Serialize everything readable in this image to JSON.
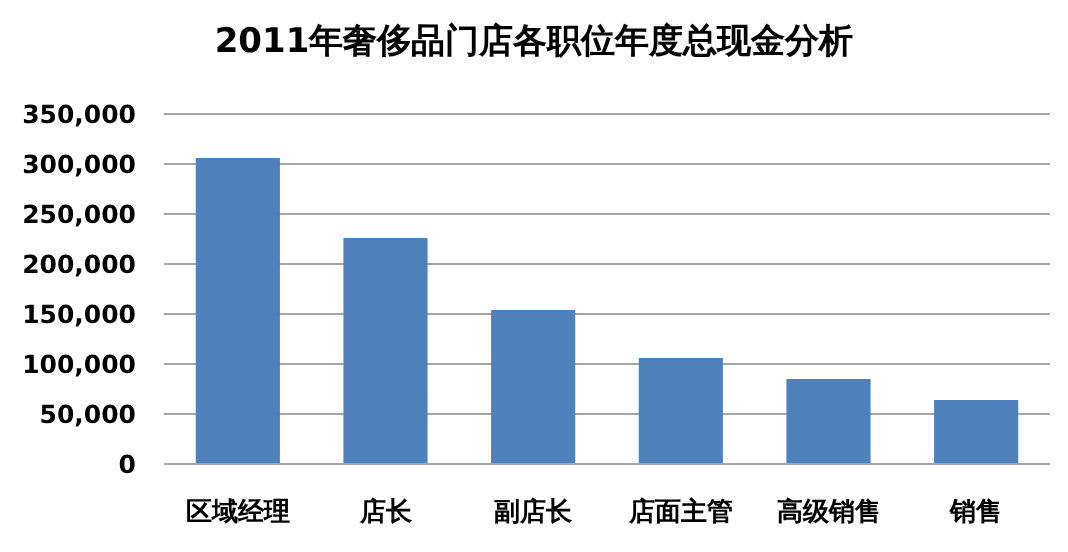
{
  "chart_data": {
    "type": "bar",
    "title": "2011年奢侈品门店各职位年度总现金分析",
    "categories": [
      "区域经理",
      "店长",
      "副店长",
      "店面主管",
      "高级销售",
      "销售"
    ],
    "values": [
      306000,
      226000,
      154000,
      106000,
      85000,
      64000
    ],
    "color": "#4f81bd",
    "ylim": [
      0,
      350000
    ],
    "yticks": [
      {
        "value": 0,
        "label": "0"
      },
      {
        "value": 50000,
        "label": "50,000"
      },
      {
        "value": 100000,
        "label": "100,000"
      },
      {
        "value": 150000,
        "label": "150,000"
      },
      {
        "value": 200000,
        "label": "200,000"
      },
      {
        "value": 250000,
        "label": "250,000"
      },
      {
        "value": 300000,
        "label": "300,000"
      },
      {
        "value": 350000,
        "label": "350,000"
      }
    ],
    "grid": "y"
  }
}
